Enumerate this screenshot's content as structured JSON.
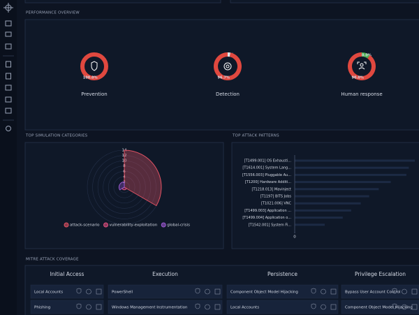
{
  "sections": {
    "performance": {
      "title": "PERFORMANCE OVERVIEW",
      "donuts": [
        {
          "label": "Prevention",
          "segments": [
            {
              "value": 100.0,
              "label": "100.0%",
              "color": "#e0483f"
            }
          ]
        },
        {
          "label": "Detection",
          "segments": [
            {
              "value": 3.3,
              "label": "3.3%",
              "color": "#e8e8e8"
            },
            {
              "value": 96.7,
              "label": "96.7%",
              "color": "#e0483f"
            }
          ]
        },
        {
          "label": "Human response",
          "segments": [
            {
              "value": 10.0,
              "label": "10.0%",
              "color": "#4caf50"
            },
            {
              "value": 90.0,
              "label": "90.0%",
              "color": "#e0483f"
            }
          ]
        }
      ]
    },
    "categories": {
      "title": "TOP SIMULATION CATEGORIES",
      "chart": {
        "type": "polar",
        "rlim": [
          0,
          14
        ],
        "rticks": [
          2,
          4,
          6,
          8,
          10,
          12,
          14
        ],
        "series": [
          {
            "name": "attack-scenario",
            "color": "#e05263",
            "value": 14
          },
          {
            "name": "vulnerability-exploitation",
            "color": "#e0507f",
            "value": 1
          },
          {
            "name": "global-crisis",
            "color": "#9b59d0",
            "value": 2
          }
        ]
      }
    },
    "patterns": {
      "title": "TOP ATTACK PATTERNS",
      "chart": {
        "type": "bar",
        "xlim": [
          0,
          1
        ],
        "xticks": [
          0
        ],
        "color": "#1c2a44",
        "categories": [
          "[T1499.001] OS Exhausti...",
          "[T1614.001] System Lang...",
          "[T1556.003] Pluggable Au...",
          "[T1200] Hardware Additi...",
          "[T1218.013] Mavinject",
          "[T1197] BITS Jobs",
          "[T1021.006] VNC",
          "[T1499.003] Application ...",
          "[T1499.004] Application o...",
          "[T1542.001] System Fi..."
        ],
        "values": [
          1.0,
          0.95,
          0.93,
          0.8,
          0.7,
          0.62,
          0.55,
          0.47,
          0.4,
          0.25
        ]
      }
    },
    "mitre": {
      "title": "MITRE ATTACK COVERAGE",
      "columns": [
        {
          "name": "Initial Access",
          "items": [
            "Local Accounts",
            "Phishing"
          ]
        },
        {
          "name": "Execution",
          "items": [
            "PowerShell",
            "Windows Management Instrumentation"
          ]
        },
        {
          "name": "Persistence",
          "items": [
            "Component Object Model Hijacking",
            "Local Accounts"
          ]
        },
        {
          "name": "Privilege Escalation",
          "items": [
            "Bypass User Account Control",
            "Component Object Model Hijacking"
          ]
        }
      ]
    }
  }
}
